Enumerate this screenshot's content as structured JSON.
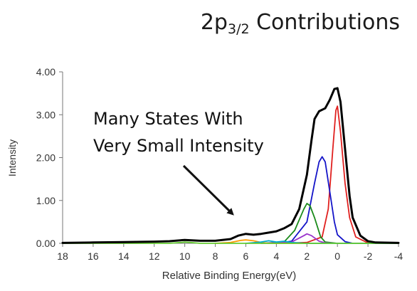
{
  "title": {
    "main": "2p",
    "sub": "3/2",
    "rest": " Contributions"
  },
  "annotation": {
    "line1": "Many States With",
    "line2": "Very Small Intensity"
  },
  "chart_data": {
    "type": "line",
    "title": "2p3/2 Contributions",
    "xlabel": "Relative Binding Energy(eV)",
    "ylabel": "Intensity",
    "xlim": [
      18,
      -4
    ],
    "ylim": [
      0,
      4
    ],
    "x_reversed": true,
    "x_ticks": [
      "18",
      "16",
      "14",
      "12",
      "10",
      "8",
      "6",
      "4",
      "2",
      "0",
      "-2",
      "-4"
    ],
    "x_tick_values": [
      18,
      16,
      14,
      12,
      10,
      8,
      6,
      4,
      2,
      0,
      -2,
      -4
    ],
    "y_ticks": [
      "0.00",
      "1.00",
      "2.00",
      "3.00",
      "4.00"
    ],
    "y_tick_values": [
      0,
      1,
      2,
      3,
      4
    ],
    "grid": false,
    "legend": "none",
    "series": [
      {
        "color": "#000000",
        "points": [
          [
            18,
            0.01
          ],
          [
            16,
            0.02
          ],
          [
            14,
            0.03
          ],
          [
            12,
            0.04
          ],
          [
            11,
            0.05
          ],
          [
            10,
            0.08
          ],
          [
            9,
            0.06
          ],
          [
            8,
            0.06
          ],
          [
            7,
            0.1
          ],
          [
            6.5,
            0.18
          ],
          [
            6,
            0.22
          ],
          [
            5.5,
            0.2
          ],
          [
            5,
            0.22
          ],
          [
            4,
            0.28
          ],
          [
            3.5,
            0.35
          ],
          [
            3,
            0.45
          ],
          [
            2.5,
            0.8
          ],
          [
            2,
            1.6
          ],
          [
            1.7,
            2.4
          ],
          [
            1.5,
            2.9
          ],
          [
            1.2,
            3.08
          ],
          [
            0.8,
            3.15
          ],
          [
            0.5,
            3.35
          ],
          [
            0.2,
            3.6
          ],
          [
            0,
            3.62
          ],
          [
            -0.2,
            3.3
          ],
          [
            -0.5,
            2.2
          ],
          [
            -0.8,
            1.1
          ],
          [
            -1,
            0.6
          ],
          [
            -1.5,
            0.18
          ],
          [
            -2,
            0.05
          ],
          [
            -2.5,
            0.02
          ],
          [
            -4,
            0.01
          ]
        ]
      },
      {
        "color": "#e0201f",
        "points": [
          [
            4,
            0
          ],
          [
            2,
            0.02
          ],
          [
            1,
            0.15
          ],
          [
            0.6,
            0.8
          ],
          [
            0.3,
            2.2
          ],
          [
            0.1,
            3.1
          ],
          [
            0,
            3.2
          ],
          [
            -0.2,
            2.6
          ],
          [
            -0.5,
            1.4
          ],
          [
            -0.8,
            0.6
          ],
          [
            -1.2,
            0.15
          ],
          [
            -2,
            0.01
          ],
          [
            -4,
            0
          ]
        ]
      },
      {
        "color": "#1414c8",
        "points": [
          [
            4,
            0
          ],
          [
            3,
            0.05
          ],
          [
            2,
            0.5
          ],
          [
            1.5,
            1.4
          ],
          [
            1.2,
            1.9
          ],
          [
            1,
            2.02
          ],
          [
            0.8,
            1.9
          ],
          [
            0.5,
            1.2
          ],
          [
            0.2,
            0.5
          ],
          [
            0,
            0.2
          ],
          [
            -0.5,
            0.04
          ],
          [
            -1,
            0
          ],
          [
            -4,
            0
          ]
        ]
      },
      {
        "color": "#1a8a1a",
        "points": [
          [
            5,
            0
          ],
          [
            3.5,
            0.03
          ],
          [
            2.8,
            0.3
          ],
          [
            2.2,
            0.8
          ],
          [
            2,
            0.93
          ],
          [
            1.8,
            0.88
          ],
          [
            1.5,
            0.6
          ],
          [
            1.1,
            0.15
          ],
          [
            0.8,
            0.03
          ],
          [
            0,
            0
          ],
          [
            -4,
            0
          ]
        ]
      },
      {
        "color": "#9933cc",
        "points": [
          [
            5,
            0
          ],
          [
            3,
            0.03
          ],
          [
            2.2,
            0.18
          ],
          [
            2,
            0.22
          ],
          [
            1.7,
            0.18
          ],
          [
            1.2,
            0.05
          ],
          [
            0.8,
            0.01
          ],
          [
            0,
            0
          ],
          [
            -4,
            0
          ]
        ]
      },
      {
        "color": "#ff9900",
        "points": [
          [
            8,
            0
          ],
          [
            7,
            0.02
          ],
          [
            6.3,
            0.07
          ],
          [
            6,
            0.08
          ],
          [
            5.5,
            0.06
          ],
          [
            5,
            0.02
          ],
          [
            4.5,
            0
          ],
          [
            -4,
            0
          ]
        ]
      },
      {
        "color": "#00aacc",
        "points": [
          [
            6,
            0
          ],
          [
            5,
            0.03
          ],
          [
            4.5,
            0.06
          ],
          [
            4,
            0.03
          ],
          [
            3.5,
            0.05
          ],
          [
            3,
            0.02
          ],
          [
            2,
            0
          ],
          [
            -4,
            0
          ]
        ]
      },
      {
        "color": "#66cc33",
        "points": [
          [
            18,
            0
          ],
          [
            11,
            0
          ],
          [
            10.3,
            0.02
          ],
          [
            10,
            0.03
          ],
          [
            9.6,
            0.02
          ],
          [
            9,
            0
          ],
          [
            -4,
            0
          ]
        ]
      }
    ]
  }
}
